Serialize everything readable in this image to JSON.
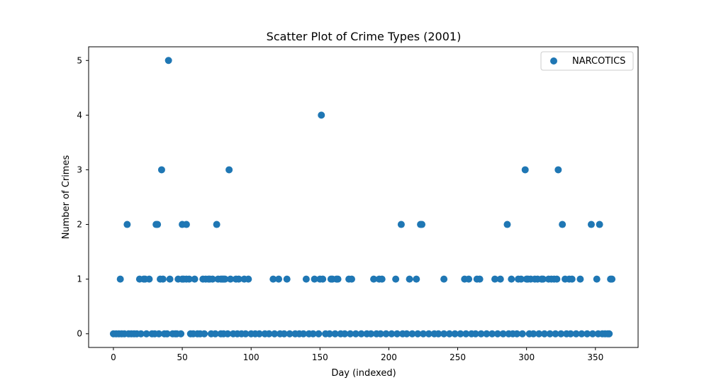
{
  "chart_data": {
    "type": "scatter",
    "title": "Scatter Plot of Crime Types (2001)",
    "xlabel": "Day (indexed)",
    "ylabel": "Number of Crimes",
    "xlim": [
      -18,
      381
    ],
    "ylim": [
      -0.25,
      5.25
    ],
    "xticks": [
      0,
      50,
      100,
      150,
      200,
      250,
      300,
      350
    ],
    "yticks": [
      0,
      1,
      2,
      3,
      4,
      5
    ],
    "legend_position": "top-right",
    "series": [
      {
        "name": "NARCOTICS",
        "color": "#1f77b4",
        "points": [
          [
            10,
            2
          ],
          [
            31,
            2
          ],
          [
            32,
            2
          ],
          [
            35,
            3
          ],
          [
            40,
            5
          ],
          [
            50,
            2
          ],
          [
            53,
            2
          ],
          [
            75,
            2
          ],
          [
            84,
            3
          ],
          [
            151,
            4
          ],
          [
            209,
            2
          ],
          [
            223,
            2
          ],
          [
            224,
            2
          ],
          [
            286,
            2
          ],
          [
            299,
            3
          ],
          [
            323,
            3
          ],
          [
            326,
            2
          ],
          [
            347,
            2
          ],
          [
            353,
            2
          ],
          [
            5,
            1
          ],
          [
            19,
            1
          ],
          [
            22,
            1
          ],
          [
            23,
            1
          ],
          [
            26,
            1
          ],
          [
            34,
            1
          ],
          [
            36,
            1
          ],
          [
            41,
            1
          ],
          [
            47,
            1
          ],
          [
            50,
            1
          ],
          [
            51,
            1
          ],
          [
            53,
            1
          ],
          [
            55,
            1
          ],
          [
            59,
            1
          ],
          [
            65,
            1
          ],
          [
            67,
            1
          ],
          [
            69,
            1
          ],
          [
            70,
            1
          ],
          [
            72,
            1
          ],
          [
            76,
            1
          ],
          [
            78,
            1
          ],
          [
            79,
            1
          ],
          [
            80,
            1
          ],
          [
            81,
            1
          ],
          [
            85,
            1
          ],
          [
            89,
            1
          ],
          [
            91,
            1
          ],
          [
            95,
            1
          ],
          [
            98,
            1
          ],
          [
            116,
            1
          ],
          [
            120,
            1
          ],
          [
            126,
            1
          ],
          [
            140,
            1
          ],
          [
            146,
            1
          ],
          [
            150,
            1
          ],
          [
            152,
            1
          ],
          [
            158,
            1
          ],
          [
            159,
            1
          ],
          [
            162,
            1
          ],
          [
            163,
            1
          ],
          [
            171,
            1
          ],
          [
            173,
            1
          ],
          [
            189,
            1
          ],
          [
            193,
            1
          ],
          [
            195,
            1
          ],
          [
            205,
            1
          ],
          [
            215,
            1
          ],
          [
            220,
            1
          ],
          [
            240,
            1
          ],
          [
            255,
            1
          ],
          [
            258,
            1
          ],
          [
            264,
            1
          ],
          [
            266,
            1
          ],
          [
            277,
            1
          ],
          [
            281,
            1
          ],
          [
            289,
            1
          ],
          [
            294,
            1
          ],
          [
            296,
            1
          ],
          [
            300,
            1
          ],
          [
            301,
            1
          ],
          [
            303,
            1
          ],
          [
            306,
            1
          ],
          [
            308,
            1
          ],
          [
            311,
            1
          ],
          [
            312,
            1
          ],
          [
            316,
            1
          ],
          [
            318,
            1
          ],
          [
            320,
            1
          ],
          [
            322,
            1
          ],
          [
            328,
            1
          ],
          [
            331,
            1
          ],
          [
            333,
            1
          ],
          [
            339,
            1
          ],
          [
            351,
            1
          ],
          [
            361,
            1
          ],
          [
            362,
            1
          ],
          [
            0,
            0
          ],
          [
            2,
            0
          ],
          [
            4,
            0
          ],
          [
            6,
            0
          ],
          [
            8,
            0
          ],
          [
            11,
            0
          ],
          [
            13,
            0
          ],
          [
            15,
            0
          ],
          [
            17,
            0
          ],
          [
            20,
            0
          ],
          [
            24,
            0
          ],
          [
            28,
            0
          ],
          [
            30,
            0
          ],
          [
            33,
            0
          ],
          [
            37,
            0
          ],
          [
            39,
            0
          ],
          [
            43,
            0
          ],
          [
            45,
            0
          ],
          [
            46,
            0
          ],
          [
            49,
            0
          ],
          [
            56,
            0
          ],
          [
            58,
            0
          ],
          [
            61,
            0
          ],
          [
            63,
            0
          ],
          [
            66,
            0
          ],
          [
            71,
            0
          ],
          [
            74,
            0
          ],
          [
            78,
            0
          ],
          [
            80,
            0
          ],
          [
            83,
            0
          ],
          [
            87,
            0
          ],
          [
            90,
            0
          ],
          [
            93,
            0
          ],
          [
            96,
            0
          ],
          [
            100,
            0
          ],
          [
            103,
            0
          ],
          [
            106,
            0
          ],
          [
            110,
            0
          ],
          [
            113,
            0
          ],
          [
            117,
            0
          ],
          [
            121,
            0
          ],
          [
            124,
            0
          ],
          [
            128,
            0
          ],
          [
            132,
            0
          ],
          [
            135,
            0
          ],
          [
            138,
            0
          ],
          [
            142,
            0
          ],
          [
            145,
            0
          ],
          [
            149,
            0
          ],
          [
            154,
            0
          ],
          [
            157,
            0
          ],
          [
            161,
            0
          ],
          [
            165,
            0
          ],
          [
            168,
            0
          ],
          [
            172,
            0
          ],
          [
            176,
            0
          ],
          [
            180,
            0
          ],
          [
            184,
            0
          ],
          [
            187,
            0
          ],
          [
            191,
            0
          ],
          [
            194,
            0
          ],
          [
            198,
            0
          ],
          [
            202,
            0
          ],
          [
            206,
            0
          ],
          [
            210,
            0
          ],
          [
            213,
            0
          ],
          [
            217,
            0
          ],
          [
            221,
            0
          ],
          [
            225,
            0
          ],
          [
            229,
            0
          ],
          [
            233,
            0
          ],
          [
            236,
            0
          ],
          [
            240,
            0
          ],
          [
            244,
            0
          ],
          [
            248,
            0
          ],
          [
            252,
            0
          ],
          [
            256,
            0
          ],
          [
            260,
            0
          ],
          [
            263,
            0
          ],
          [
            267,
            0
          ],
          [
            271,
            0
          ],
          [
            275,
            0
          ],
          [
            279,
            0
          ],
          [
            283,
            0
          ],
          [
            287,
            0
          ],
          [
            290,
            0
          ],
          [
            293,
            0
          ],
          [
            297,
            0
          ],
          [
            302,
            0
          ],
          [
            305,
            0
          ],
          [
            309,
            0
          ],
          [
            313,
            0
          ],
          [
            317,
            0
          ],
          [
            321,
            0
          ],
          [
            325,
            0
          ],
          [
            329,
            0
          ],
          [
            332,
            0
          ],
          [
            336,
            0
          ],
          [
            340,
            0
          ],
          [
            344,
            0
          ],
          [
            348,
            0
          ],
          [
            352,
            0
          ],
          [
            355,
            0
          ],
          [
            357,
            0
          ],
          [
            359,
            0
          ],
          [
            360,
            0
          ]
        ]
      }
    ]
  }
}
